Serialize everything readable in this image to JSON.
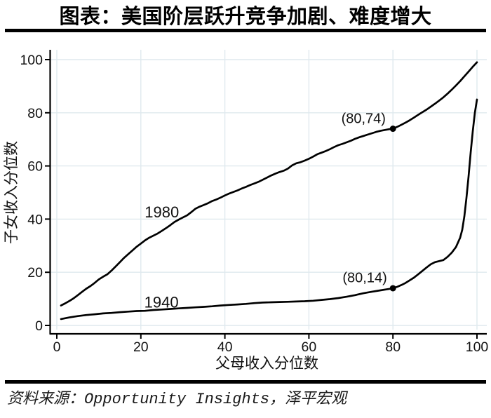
{
  "header": {
    "title": "图表：美国阶层跃升竞争加剧、难度增大"
  },
  "footer": {
    "source": "资料来源：Opportunity Insights，泽平宏观"
  },
  "chart_data": {
    "type": "line",
    "title": "图表：美国阶层跃升竞争加剧、难度增大",
    "xlabel": "父母收入分位数",
    "ylabel": "子女收入分位数",
    "xlim": [
      0,
      100
    ],
    "ylim": [
      0,
      100
    ],
    "xticks": [
      0,
      20,
      40,
      60,
      80,
      100
    ],
    "yticks": [
      0,
      20,
      40,
      60,
      80,
      100
    ],
    "grid": true,
    "grid_color": "#dfe9ee",
    "axis_color": "#000000",
    "line_color": "#000000",
    "text_color": "#111111",
    "series": [
      {
        "name": "1980",
        "label_at": [
          25,
          42.6
        ],
        "points": [
          [
            1,
            7.5
          ],
          [
            2,
            8.3
          ],
          [
            3,
            9.2
          ],
          [
            4,
            10.2
          ],
          [
            5,
            11.4
          ],
          [
            6,
            12.6
          ],
          [
            7,
            13.8
          ],
          [
            8,
            14.8
          ],
          [
            9,
            16.0
          ],
          [
            10,
            17.3
          ],
          [
            11,
            18.3
          ],
          [
            12,
            19.2
          ],
          [
            13,
            20.6
          ],
          [
            14,
            22.2
          ],
          [
            15,
            23.8
          ],
          [
            16,
            25.4
          ],
          [
            17,
            26.8
          ],
          [
            18,
            28.2
          ],
          [
            19,
            29.6
          ],
          [
            20,
            30.8
          ],
          [
            21,
            32.0
          ],
          [
            22,
            33.0
          ],
          [
            23,
            33.8
          ],
          [
            24,
            34.6
          ],
          [
            25,
            35.6
          ],
          [
            26,
            36.6
          ],
          [
            27,
            37.7
          ],
          [
            28,
            38.9
          ],
          [
            29,
            39.8
          ],
          [
            30,
            40.6
          ],
          [
            31,
            41.4
          ],
          [
            32,
            42.6
          ],
          [
            33,
            43.9
          ],
          [
            34,
            44.7
          ],
          [
            35,
            45.3
          ],
          [
            36,
            46.0
          ],
          [
            37,
            46.8
          ],
          [
            38,
            47.4
          ],
          [
            39,
            48.1
          ],
          [
            40,
            48.9
          ],
          [
            41,
            49.6
          ],
          [
            42,
            50.2
          ],
          [
            43,
            50.8
          ],
          [
            44,
            51.5
          ],
          [
            45,
            52.1
          ],
          [
            46,
            52.8
          ],
          [
            47,
            53.4
          ],
          [
            48,
            54.0
          ],
          [
            49,
            54.8
          ],
          [
            50,
            55.6
          ],
          [
            51,
            56.4
          ],
          [
            52,
            57.1
          ],
          [
            53,
            57.7
          ],
          [
            54,
            58.2
          ],
          [
            55,
            59.0
          ],
          [
            56,
            60.2
          ],
          [
            57,
            61.0
          ],
          [
            58,
            61.4
          ],
          [
            59,
            62.0
          ],
          [
            60,
            62.7
          ],
          [
            61,
            63.5
          ],
          [
            62,
            64.4
          ],
          [
            63,
            65.0
          ],
          [
            64,
            65.6
          ],
          [
            65,
            66.3
          ],
          [
            66,
            67.1
          ],
          [
            67,
            67.8
          ],
          [
            68,
            68.3
          ],
          [
            69,
            68.9
          ],
          [
            70,
            69.5
          ],
          [
            71,
            70.2
          ],
          [
            72,
            70.8
          ],
          [
            73,
            71.3
          ],
          [
            74,
            71.8
          ],
          [
            75,
            72.3
          ],
          [
            76,
            72.8
          ],
          [
            77,
            73.2
          ],
          [
            78,
            73.5
          ],
          [
            79,
            73.8
          ],
          [
            80,
            74.0
          ],
          [
            81,
            74.7
          ],
          [
            82,
            75.5
          ],
          [
            83,
            76.3
          ],
          [
            84,
            77.2
          ],
          [
            85,
            78.2
          ],
          [
            86,
            79.2
          ],
          [
            87,
            80.2
          ],
          [
            88,
            81.2
          ],
          [
            89,
            82.3
          ],
          [
            90,
            83.4
          ],
          [
            91,
            84.6
          ],
          [
            92,
            85.8
          ],
          [
            93,
            87.2
          ],
          [
            94,
            88.7
          ],
          [
            95,
            90.3
          ],
          [
            96,
            91.9
          ],
          [
            97,
            93.7
          ],
          [
            98,
            95.5
          ],
          [
            99,
            97.3
          ],
          [
            100,
            99.0
          ]
        ]
      },
      {
        "name": "1940",
        "label_at": [
          24.9,
          8.7
        ],
        "points": [
          [
            1,
            2.4
          ],
          [
            3,
            3.0
          ],
          [
            5,
            3.5
          ],
          [
            7,
            3.9
          ],
          [
            9,
            4.2
          ],
          [
            11,
            4.5
          ],
          [
            13,
            4.7
          ],
          [
            15,
            5.0
          ],
          [
            17,
            5.2
          ],
          [
            19,
            5.4
          ],
          [
            21,
            5.5
          ],
          [
            23,
            5.8
          ],
          [
            25,
            6.0
          ],
          [
            27,
            6.2
          ],
          [
            29,
            6.4
          ],
          [
            31,
            6.6
          ],
          [
            33,
            6.8
          ],
          [
            35,
            7.0
          ],
          [
            37,
            7.2
          ],
          [
            39,
            7.5
          ],
          [
            41,
            7.7
          ],
          [
            43,
            7.9
          ],
          [
            45,
            8.1
          ],
          [
            47,
            8.4
          ],
          [
            49,
            8.6
          ],
          [
            51,
            8.7
          ],
          [
            53,
            8.8
          ],
          [
            55,
            8.9
          ],
          [
            57,
            9.0
          ],
          [
            59,
            9.1
          ],
          [
            61,
            9.3
          ],
          [
            63,
            9.6
          ],
          [
            65,
            9.9
          ],
          [
            67,
            10.3
          ],
          [
            69,
            10.8
          ],
          [
            71,
            11.4
          ],
          [
            73,
            12.1
          ],
          [
            75,
            12.7
          ],
          [
            77,
            13.2
          ],
          [
            79,
            13.7
          ],
          [
            80,
            14.0
          ],
          [
            81,
            14.5
          ],
          [
            82,
            15.2
          ],
          [
            83,
            16.0
          ],
          [
            84,
            17.0
          ],
          [
            85,
            18.0
          ],
          [
            86,
            19.2
          ],
          [
            87,
            20.5
          ],
          [
            88,
            21.8
          ],
          [
            89,
            23.0
          ],
          [
            90,
            23.8
          ],
          [
            91,
            24.2
          ],
          [
            92,
            24.6
          ],
          [
            93,
            25.8
          ],
          [
            94,
            27.4
          ],
          [
            95,
            29.5
          ],
          [
            96,
            33.0
          ],
          [
            96.5,
            36.0
          ],
          [
            97,
            41.0
          ],
          [
            97.5,
            48.0
          ],
          [
            98,
            56.0
          ],
          [
            98.5,
            65.0
          ],
          [
            99,
            73.0
          ],
          [
            99.5,
            80.0
          ],
          [
            100,
            85.0
          ]
        ]
      }
    ],
    "annotations": [
      {
        "text": "(80,74)",
        "point": [
          80,
          74
        ],
        "label_at": [
          73.0,
          77.7
        ]
      },
      {
        "text": "(80,14)",
        "point": [
          80,
          14
        ],
        "label_at": [
          73.3,
          17.8
        ]
      }
    ]
  }
}
